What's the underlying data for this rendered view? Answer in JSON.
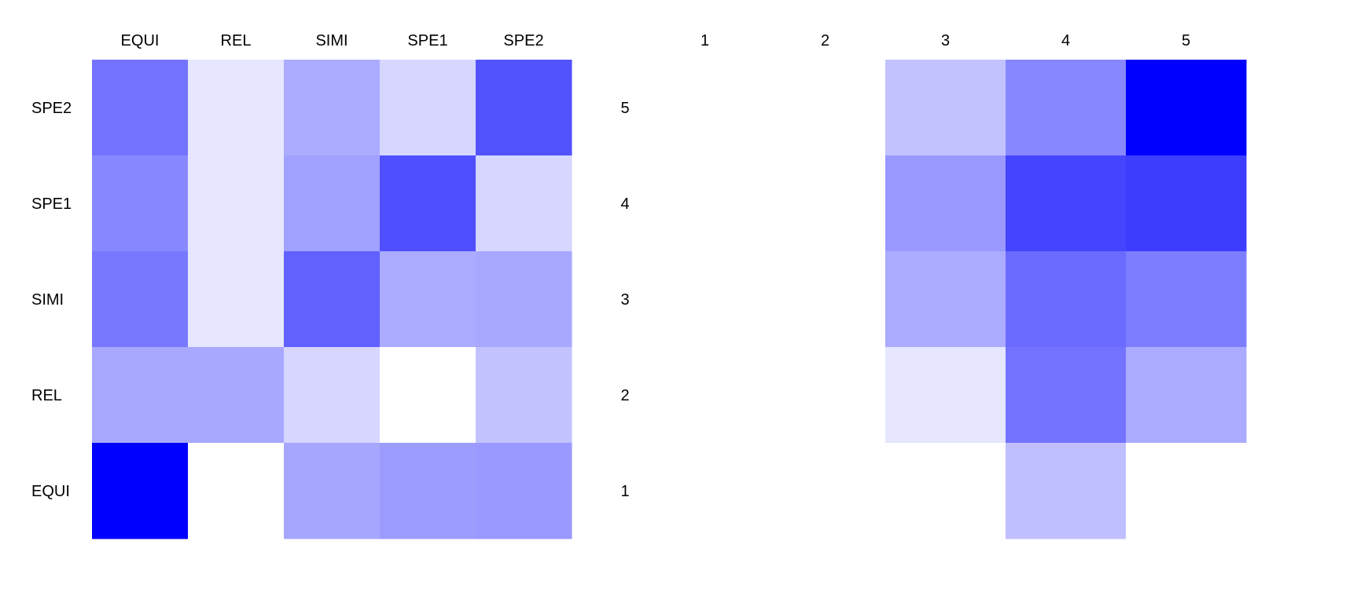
{
  "chart_data": [
    {
      "type": "heatmap",
      "title": "",
      "x_labels": [
        "EQUI",
        "REL",
        "SIMI",
        "SPE1",
        "SPE2"
      ],
      "y_labels": [
        "SPE2",
        "SPE1",
        "SIMI",
        "REL",
        "EQUI"
      ],
      "intensity": [
        [
          0.55,
          0.1,
          0.33,
          0.16,
          0.68
        ],
        [
          0.47,
          0.1,
          0.37,
          0.69,
          0.16
        ],
        [
          0.53,
          0.1,
          0.62,
          0.33,
          0.34
        ],
        [
          0.34,
          0.34,
          0.16,
          0.0,
          0.24
        ],
        [
          1.0,
          0.0,
          0.35,
          0.39,
          0.4
        ]
      ],
      "color_low": "#ffffff",
      "color_high": "#0000ff"
    },
    {
      "type": "heatmap",
      "title": "",
      "x_labels": [
        "1",
        "2",
        "3",
        "4",
        "5"
      ],
      "y_labels": [
        "5",
        "4",
        "3",
        "2",
        "1"
      ],
      "intensity": [
        [
          0.0,
          0.0,
          0.24,
          0.47,
          1.0
        ],
        [
          0.0,
          0.0,
          0.4,
          0.73,
          0.76
        ],
        [
          0.0,
          0.0,
          0.33,
          0.58,
          0.51
        ],
        [
          0.0,
          0.0,
          0.1,
          0.55,
          0.33
        ],
        [
          0.0,
          0.0,
          0.0,
          0.25,
          0.0
        ]
      ],
      "color_low": "#ffffff",
      "color_high": "#0000ff"
    }
  ]
}
